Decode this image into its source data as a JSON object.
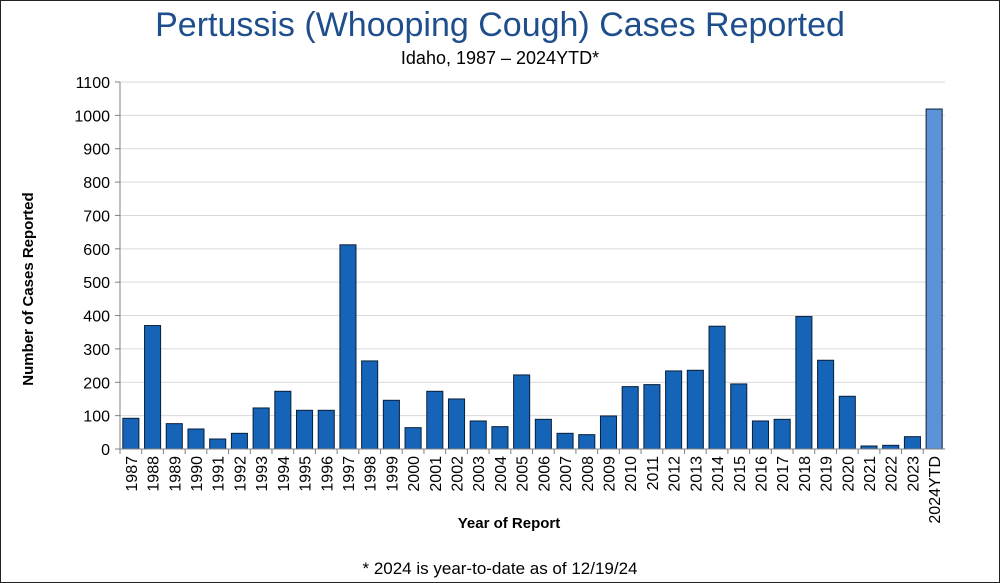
{
  "chart_data": {
    "type": "bar",
    "title": "Pertussis (Whooping Cough) Cases Reported",
    "subtitle": "Idaho, 1987 – 2024YTD*",
    "xlabel": "Year of Report",
    "ylabel": "Number of Cases Reported",
    "footnote": "* 2024 is year-to-date as of 12/19/24",
    "ylim": [
      0,
      1100
    ],
    "yticks": [
      0,
      100,
      200,
      300,
      400,
      500,
      600,
      700,
      800,
      900,
      1000,
      1100
    ],
    "grid": true,
    "categories": [
      "1987",
      "1988",
      "1989",
      "1990",
      "1991",
      "1992",
      "1993",
      "1994",
      "1995",
      "1996",
      "1997",
      "1998",
      "1999",
      "2000",
      "2001",
      "2002",
      "2003",
      "2004",
      "2005",
      "2006",
      "2007",
      "2008",
      "2009",
      "2010",
      "2011",
      "2012",
      "2013",
      "2014",
      "2015",
      "2016",
      "2017",
      "2018",
      "2019",
      "2020",
      "2021",
      "2022",
      "2023",
      "2024YTD"
    ],
    "values": [
      92,
      370,
      76,
      60,
      30,
      47,
      123,
      173,
      116,
      116,
      612,
      264,
      146,
      64,
      173,
      150,
      84,
      67,
      222,
      89,
      47,
      43,
      99,
      187,
      193,
      234,
      236,
      368,
      195,
      84,
      89,
      397,
      266,
      158,
      9,
      11,
      37,
      1019
    ],
    "colors": {
      "bar": "#1564b8",
      "bar_highlight": "#5b93d6",
      "bar_stroke": "#0a1f3a",
      "grid": "#d9d9d9",
      "axis": "#808080"
    }
  }
}
